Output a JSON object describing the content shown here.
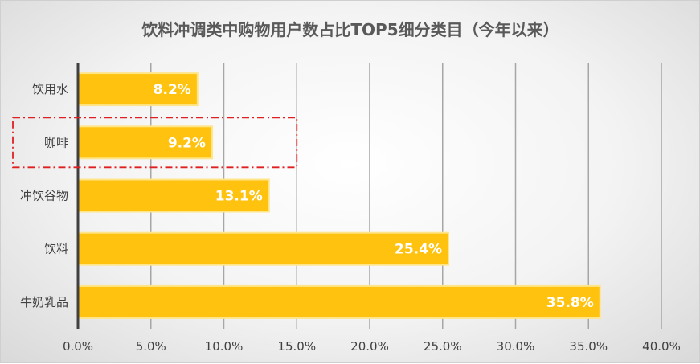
{
  "chart_data": {
    "type": "bar",
    "orientation": "horizontal",
    "title": "饮料冲调类中购物用户数占比TOP5细分类目（今年以来）",
    "categories": [
      "饮用水",
      "咖啡",
      "冲饮谷物",
      "饮料",
      "牛奶乳品"
    ],
    "values": [
      8.2,
      9.2,
      13.1,
      25.4,
      35.8
    ],
    "data_labels": [
      "8.2%",
      "9.2%",
      "13.1%",
      "25.4%",
      "35.8%"
    ],
    "xlim": [
      0,
      40
    ],
    "x_ticks": [
      0,
      5,
      10,
      15,
      20,
      25,
      30,
      35,
      40
    ],
    "x_tick_labels": [
      "0.0%",
      "5.0%",
      "10.0%",
      "15.0%",
      "20.0%",
      "25.0%",
      "30.0%",
      "35.0%",
      "40.0%"
    ],
    "grid": true,
    "highlighted_category": "咖啡",
    "colors": {
      "bar": "#FFC20E",
      "bar_edge": "#FFE58A",
      "highlight_box": "#E02020",
      "grid": "#A6A6A6",
      "axis": "#404040"
    }
  }
}
